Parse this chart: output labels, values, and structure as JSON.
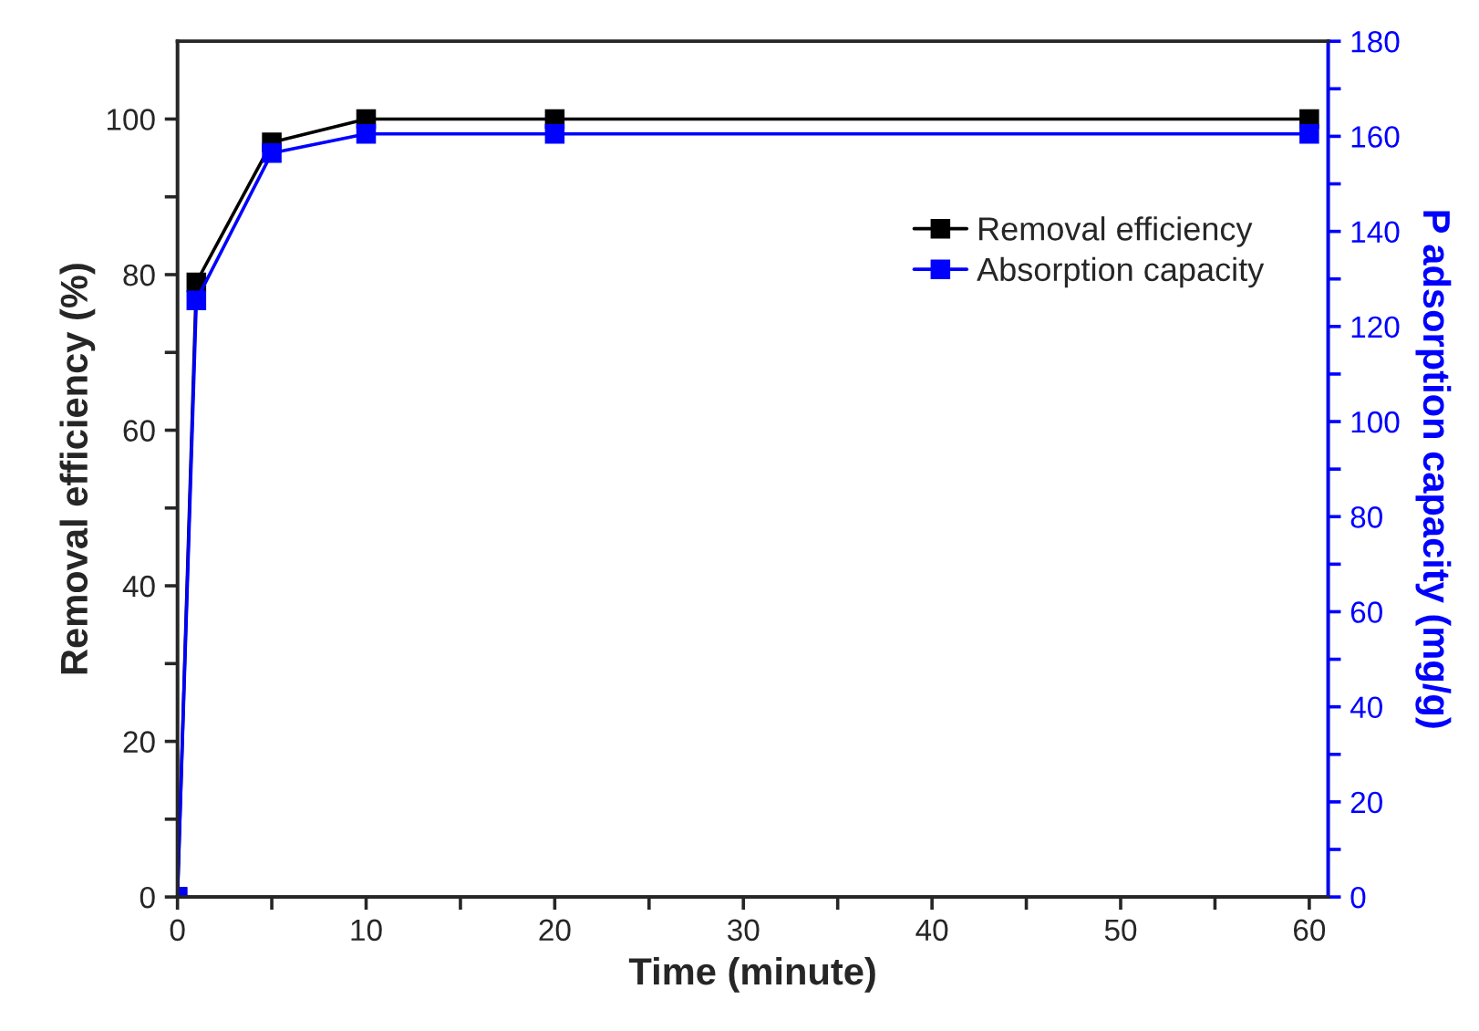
{
  "chart_data": {
    "type": "line",
    "xlabel": "Time (minute)",
    "ylabel": "Removal efficiency (%)",
    "y2label": "P adsorption capacity (mg/g)",
    "xlim": [
      0,
      61
    ],
    "xticks": [
      0,
      {
        "value": 5,
        "label": null
      },
      10,
      {
        "value": 15,
        "label": null
      },
      20,
      {
        "value": 25,
        "label": null
      },
      30,
      {
        "value": 35,
        "label": null
      },
      40,
      {
        "value": 45,
        "label": null
      },
      50,
      {
        "value": 55,
        "label": null
      },
      60
    ],
    "ylim": [
      0,
      110
    ],
    "yticks": [
      0,
      {
        "value": 10,
        "label": null
      },
      20,
      {
        "value": 30,
        "label": null
      },
      40,
      {
        "value": 50,
        "label": null
      },
      60,
      {
        "value": 70,
        "label": null
      },
      80,
      {
        "value": 90,
        "label": null
      },
      100
    ],
    "y2lim": [
      0,
      180
    ],
    "y2ticks": [
      0,
      {
        "value": 10,
        "label": null
      },
      20,
      {
        "value": 30,
        "label": null
      },
      40,
      {
        "value": 50,
        "label": null
      },
      60,
      {
        "value": 70,
        "label": null
      },
      80,
      {
        "value": 90,
        "label": null
      },
      100,
      {
        "value": 110,
        "label": null
      },
      120,
      {
        "value": 130,
        "label": null
      },
      140,
      {
        "value": 150,
        "label": null
      },
      160,
      {
        "value": 170,
        "label": null
      },
      180
    ],
    "x": [
      0,
      1,
      5,
      10,
      20,
      60
    ],
    "series": [
      {
        "name": "Removal efficiency",
        "color": "#000000",
        "values": [
          0,
          79,
          97,
          100,
          100,
          100
        ]
      },
      {
        "name": "Absorption capacity",
        "color": "#0000ff",
        "axis": "y2",
        "values": [
          0,
          125.5,
          156.5,
          160.5,
          160.5,
          160.5
        ]
      }
    ],
    "marker": "square",
    "line_style": "solid",
    "legend": "top right",
    "grid": false
  }
}
